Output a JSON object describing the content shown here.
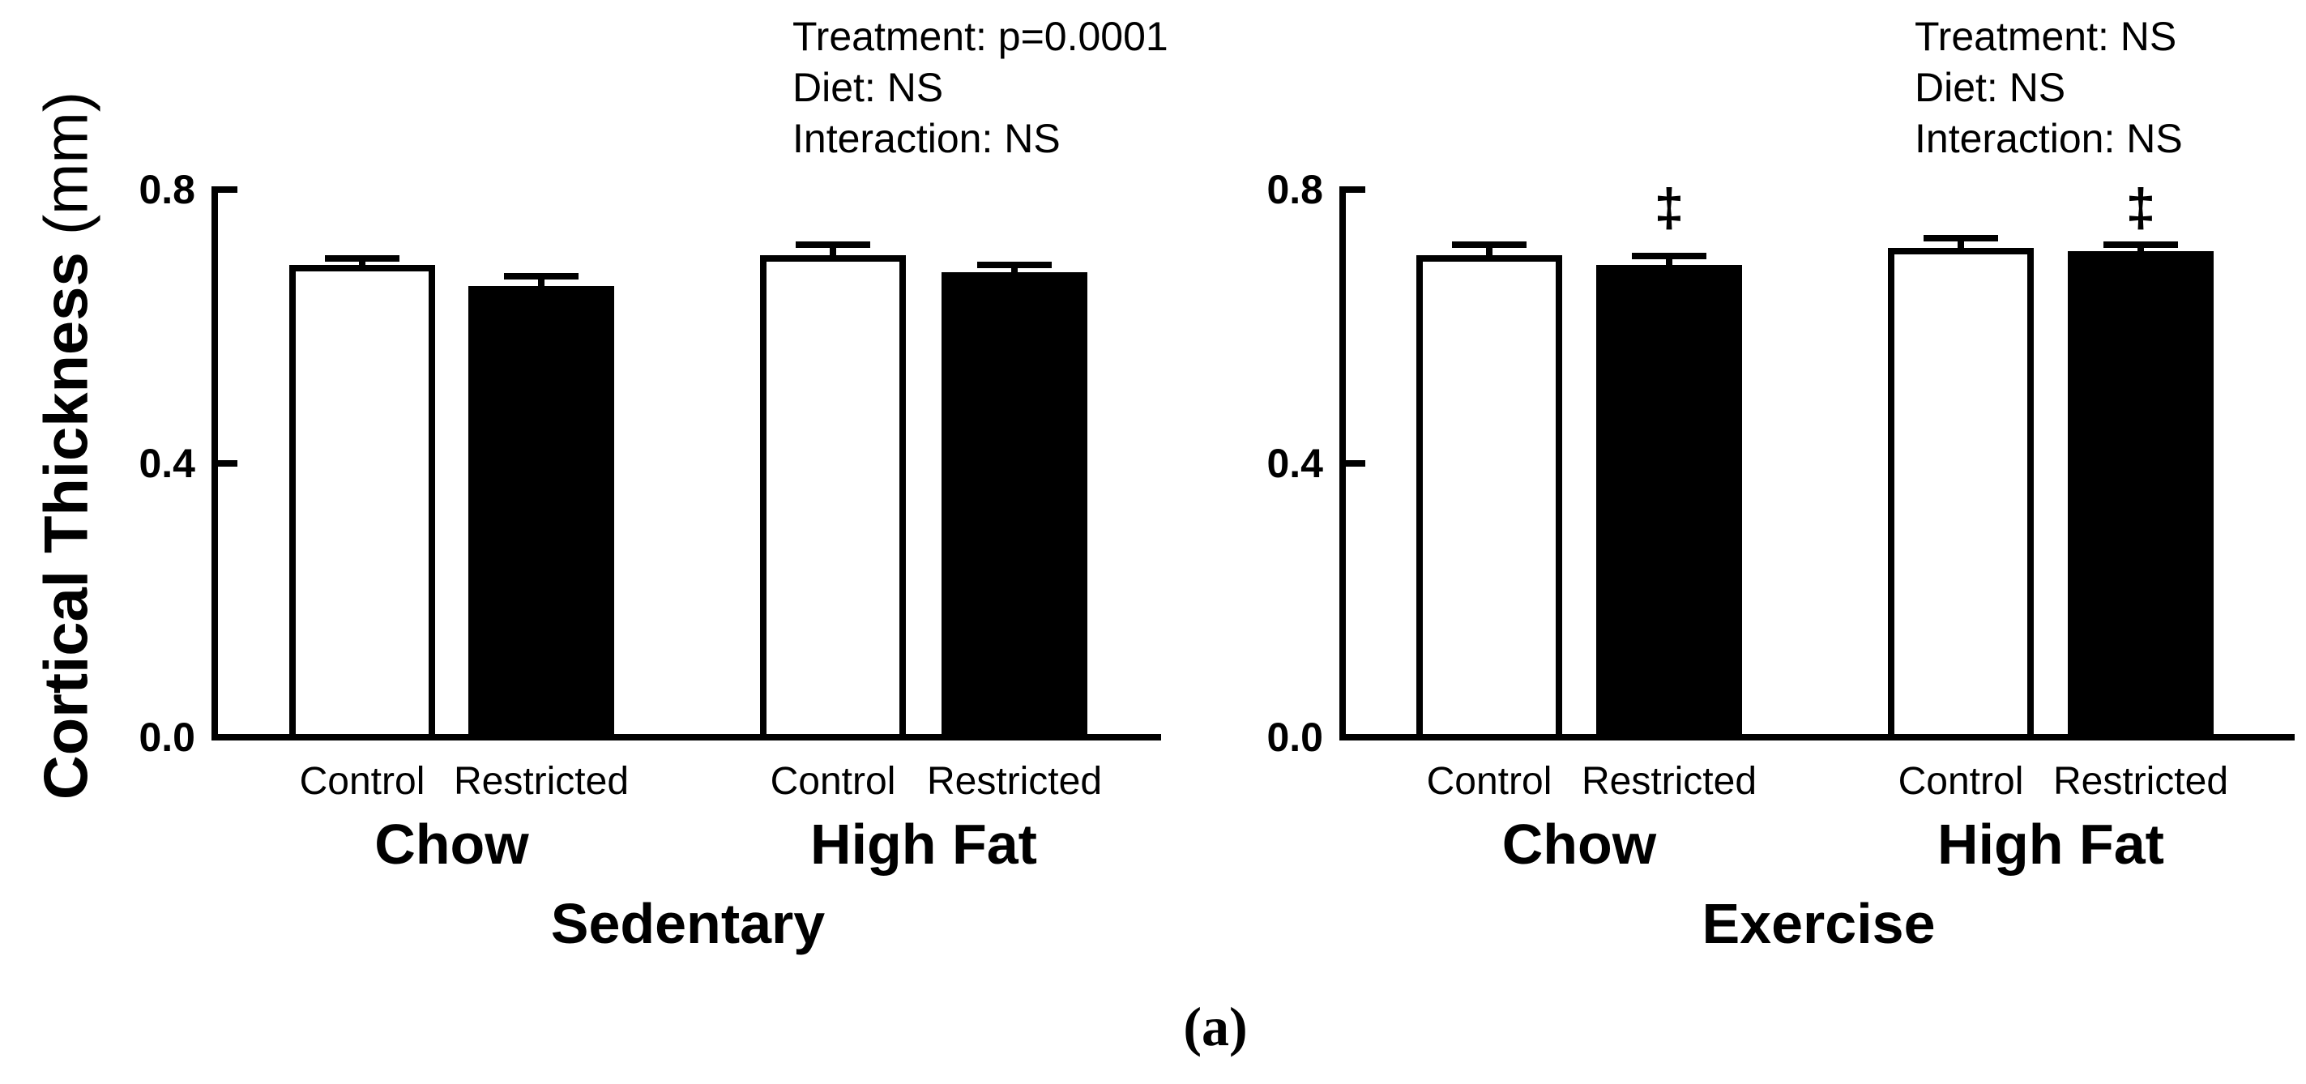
{
  "figure": {
    "label": "(a)",
    "ylabel_main": "Cortical Thickness",
    "ylabel_unit": " (mm)"
  },
  "colors": {
    "foreground": "#000000",
    "background": "#ffffff",
    "control_bar_fill": "#ffffff",
    "restricted_bar_fill": "#000000"
  },
  "chart_data": [
    {
      "type": "bar",
      "panel_label": "Sedentary",
      "stats_lines": [
        "Treatment: p=0.0001",
        "Diet: NS",
        "Interaction: NS"
      ],
      "ylabel": "Cortical Thickness (mm)",
      "ylim": [
        0.0,
        0.8
      ],
      "grid": false,
      "legend": "none",
      "yticks": [
        {
          "value": 0.0,
          "label": "0.0"
        },
        {
          "value": 0.4,
          "label": "0.4"
        },
        {
          "value": 0.8,
          "label": "0.8"
        }
      ],
      "groups": [
        {
          "label": "Chow",
          "bars": [
            {
              "label": "Control",
              "value": 0.685,
              "sem": 0.007,
              "fill": "#ffffff",
              "sig": ""
            },
            {
              "label": "Restricted",
              "value": 0.655,
              "sem": 0.011,
              "fill": "#000000",
              "sig": ""
            }
          ]
        },
        {
          "label": "High Fat",
          "bars": [
            {
              "label": "Control",
              "value": 0.7,
              "sem": 0.013,
              "fill": "#ffffff",
              "sig": ""
            },
            {
              "label": "Restricted",
              "value": 0.675,
              "sem": 0.008,
              "fill": "#000000",
              "sig": ""
            }
          ]
        }
      ]
    },
    {
      "type": "bar",
      "panel_label": "Exercise",
      "stats_lines": [
        "Treatment: NS",
        "Diet: NS",
        "Interaction: NS"
      ],
      "ylabel": "Cortical Thickness (mm)",
      "ylim": [
        0.0,
        0.8
      ],
      "grid": false,
      "legend": "none",
      "yticks": [
        {
          "value": 0.0,
          "label": "0.0"
        },
        {
          "value": 0.4,
          "label": "0.4"
        },
        {
          "value": 0.8,
          "label": "0.8"
        }
      ],
      "groups": [
        {
          "label": "Chow",
          "bars": [
            {
              "label": "Control",
              "value": 0.7,
              "sem": 0.012,
              "fill": "#ffffff",
              "sig": ""
            },
            {
              "label": "Restricted",
              "value": 0.685,
              "sem": 0.011,
              "fill": "#000000",
              "sig": "‡"
            }
          ]
        },
        {
          "label": "High Fat",
          "bars": [
            {
              "label": "Control",
              "value": 0.71,
              "sem": 0.012,
              "fill": "#ffffff",
              "sig": ""
            },
            {
              "label": "Restricted",
              "value": 0.705,
              "sem": 0.008,
              "fill": "#000000",
              "sig": "‡"
            }
          ]
        }
      ]
    }
  ]
}
